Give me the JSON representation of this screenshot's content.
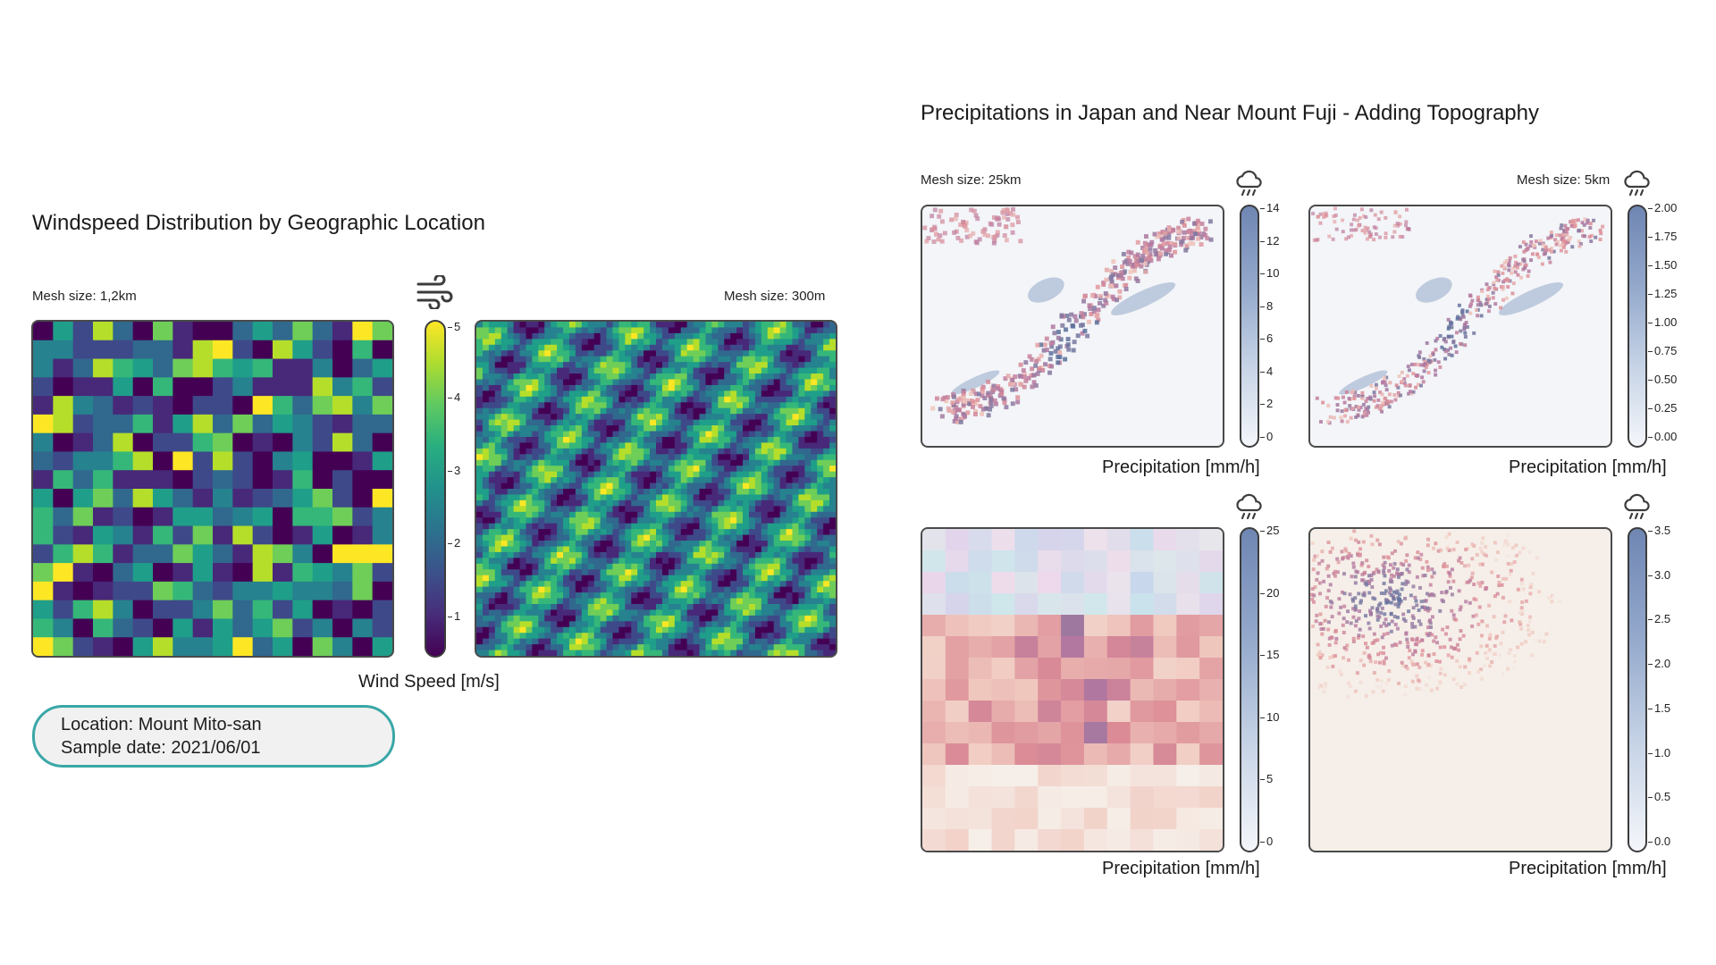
{
  "left": {
    "title": "Windspeed Distribution by Geographic Location",
    "mesh_left": "Mesh size: 1,2km",
    "mesh_right": "Mesh size: 300m",
    "colorbar_label": "Wind Speed [m/s]",
    "colorbar_ticks": [
      "5",
      "4",
      "3",
      "2",
      "1"
    ],
    "icon": "wind-icon",
    "info": {
      "location": "Location: Mount Mito-san",
      "date": "Sample date: 2021/06/01"
    }
  },
  "right": {
    "title": "Precipitations in Japan and Near Mount Fuji - Adding Topography",
    "mesh_left": "Mesh size: 25km",
    "mesh_right": "Mesh size: 5km",
    "icon": "rain-cloud-icon",
    "colorbar_label": "Precipitation [mm/h]",
    "bars": [
      {
        "ticks": [
          "14",
          "12",
          "10",
          "8",
          "6",
          "4",
          "2",
          "0"
        ]
      },
      {
        "ticks": [
          "2.00",
          "1.75",
          "1.50",
          "1.25",
          "1.00",
          "0.75",
          "0.50",
          "0.25",
          "0.00"
        ]
      },
      {
        "ticks": [
          "25",
          "20",
          "15",
          "10",
          "5",
          "0"
        ]
      },
      {
        "ticks": [
          "3.5",
          "3.0",
          "2.5",
          "2.0",
          "1.5",
          "1.0",
          "0.5",
          "0.0"
        ]
      }
    ]
  },
  "colors": {
    "accent_border": "#3aa7a7",
    "viridis_low": "#440154",
    "viridis_high": "#fde725",
    "precip_high": "#6f86b3"
  },
  "chart_data": [
    {
      "type": "heatmap",
      "title": "Windspeed Distribution by Geographic Location",
      "subtitle": "Mesh size: 1,2km",
      "colorbar_label": "Wind Speed [m/s]",
      "zlim": [
        0.5,
        5
      ],
      "colormap": "viridis",
      "grid": "18x18"
    },
    {
      "type": "heatmap",
      "subtitle": "Mesh size: 300m",
      "colorbar_label": "Wind Speed [m/s]",
      "zlim": [
        0.5,
        5
      ],
      "colormap": "viridis"
    },
    {
      "type": "heatmap",
      "title": "Precipitations in Japan and Near Mount Fuji - Adding Topography",
      "subtitle": "Mesh size: 25km",
      "colorbar_label": "Precipitation [mm/h]",
      "zlim": [
        0,
        14
      ]
    },
    {
      "type": "heatmap",
      "subtitle": "Mesh size: 5km",
      "colorbar_label": "Precipitation [mm/h]",
      "zlim": [
        0,
        2
      ]
    },
    {
      "type": "heatmap",
      "colorbar_label": "Precipitation [mm/h]",
      "zlim": [
        0,
        25
      ]
    },
    {
      "type": "heatmap",
      "colorbar_label": "Precipitation [mm/h]",
      "zlim": [
        0,
        3.5
      ]
    }
  ]
}
